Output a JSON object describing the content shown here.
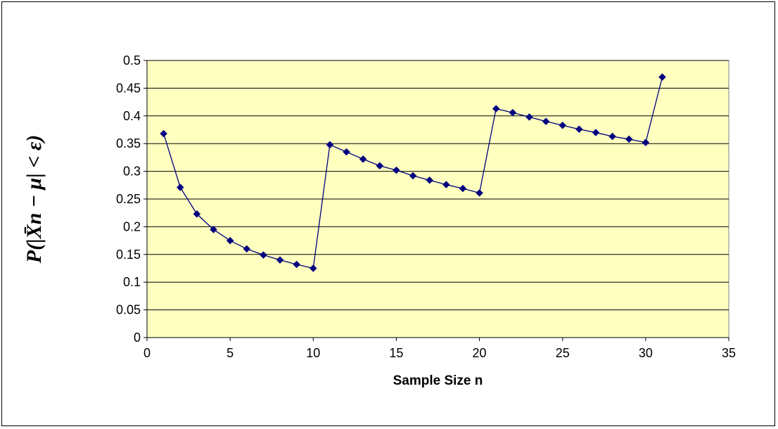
{
  "chart_data": {
    "type": "line",
    "title": "",
    "xlabel": "Sample Size n",
    "ylabel": "P(|X̄n − μ| < ε)",
    "xlim": [
      0,
      35
    ],
    "ylim": [
      0,
      0.5
    ],
    "xticks": [
      0,
      5,
      10,
      15,
      20,
      25,
      30,
      35
    ],
    "yticks": [
      0,
      0.05,
      0.1,
      0.15,
      0.2,
      0.25,
      0.3,
      0.35,
      0.4,
      0.45,
      0.5
    ],
    "grid": "horizontal",
    "plot_background": "#FFFFC0",
    "series_color": "#000080",
    "marker": "diamond",
    "series": [
      {
        "x": [
          1,
          2,
          3,
          4,
          5,
          6,
          7,
          8,
          9,
          10,
          11,
          12,
          13,
          14,
          15,
          16,
          17,
          18,
          19,
          20,
          21,
          22,
          23,
          24,
          25,
          26,
          27,
          28,
          29,
          30,
          31
        ],
        "values": [
          0.368,
          0.271,
          0.223,
          0.195,
          0.175,
          0.16,
          0.149,
          0.14,
          0.132,
          0.125,
          0.348,
          0.335,
          0.322,
          0.31,
          0.302,
          0.292,
          0.284,
          0.276,
          0.269,
          0.261,
          0.413,
          0.406,
          0.398,
          0.39,
          0.383,
          0.376,
          0.37,
          0.363,
          0.358,
          0.352,
          0.47
        ]
      }
    ]
  }
}
